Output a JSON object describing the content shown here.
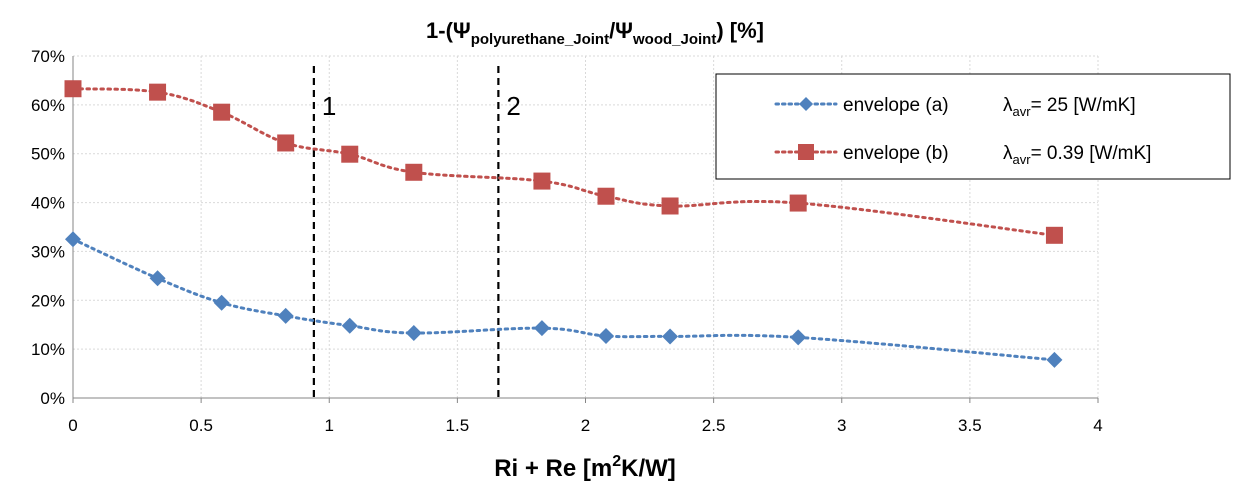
{
  "chart_data": {
    "type": "line",
    "title": {
      "main": "1-(Ψ",
      "sub1": "polyurethane_Joint",
      "mid": "/Ψ",
      "sub2": "wood_Joint",
      "tail": ") [%]"
    },
    "xlabel": {
      "main": "Ri + Re [m",
      "sup": "2",
      "tail": "K/W]"
    },
    "ylabel": "",
    "xlim": [
      0,
      4
    ],
    "ylim": [
      0,
      70
    ],
    "x_ticks": [
      {
        "value": 0,
        "label": "0"
      },
      {
        "value": 0.5,
        "label": "0.5"
      },
      {
        "value": 1,
        "label": "1"
      },
      {
        "value": 1.5,
        "label": "1.5"
      },
      {
        "value": 2,
        "label": "2"
      },
      {
        "value": 2.5,
        "label": "2.5"
      },
      {
        "value": 3,
        "label": "3"
      },
      {
        "value": 3.5,
        "label": "3.5"
      },
      {
        "value": 4,
        "label": "4"
      }
    ],
    "y_ticks": [
      {
        "value": 0,
        "label": "0%"
      },
      {
        "value": 10,
        "label": "10%"
      },
      {
        "value": 20,
        "label": "20%"
      },
      {
        "value": 30,
        "label": "30%"
      },
      {
        "value": 40,
        "label": "40%"
      },
      {
        "value": 50,
        "label": "50%"
      },
      {
        "value": 60,
        "label": "60%"
      },
      {
        "value": 70,
        "label": "70%"
      }
    ],
    "grid": true,
    "series": [
      {
        "name": "envelope (a)",
        "lambda_symbol": "λ",
        "lambda_sub": "avr",
        "lambda_value": "= 25 [W/mK]",
        "color": "#4f81bd",
        "marker": "diamond",
        "x": [
          0,
          0.33,
          0.58,
          0.83,
          1.08,
          1.33,
          1.83,
          2.08,
          2.33,
          2.83,
          3.83
        ],
        "y": [
          32.5,
          24.5,
          19.5,
          16.8,
          14.8,
          13.3,
          14.3,
          12.7,
          12.6,
          12.4,
          7.8
        ]
      },
      {
        "name": "envelope (b)",
        "lambda_symbol": "λ",
        "lambda_sub": "avr",
        "lambda_value": "= 0.39 [W/mK]",
        "color": "#c0504d",
        "marker": "square",
        "x": [
          0,
          0.33,
          0.58,
          0.83,
          1.08,
          1.33,
          1.83,
          2.08,
          2.33,
          2.83,
          3.83
        ],
        "y": [
          63.3,
          62.6,
          58.5,
          52.2,
          49.9,
          46.2,
          44.4,
          41.3,
          39.3,
          39.9,
          33.3
        ]
      }
    ],
    "vlines": [
      {
        "x": 0.94,
        "label": "1"
      },
      {
        "x": 1.66,
        "label": "2"
      }
    ],
    "legend": "top-right"
  }
}
